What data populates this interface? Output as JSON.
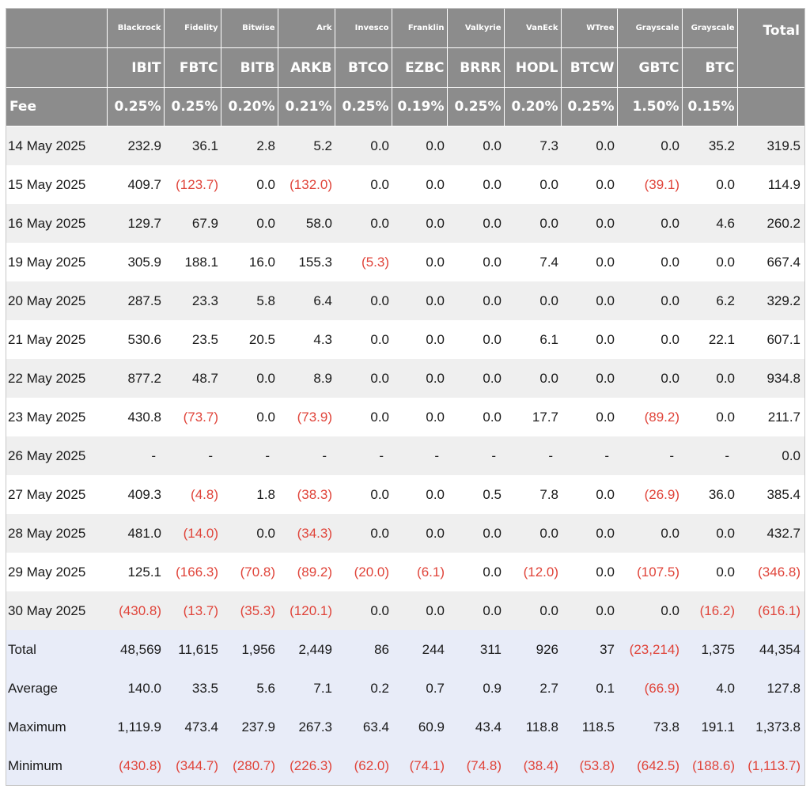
{
  "issuers": [
    "Blackrock",
    "Fidelity",
    "Bitwise",
    "Ark",
    "Invesco",
    "Franklin",
    "Valkyrie",
    "VanEck",
    "WTree",
    "Grayscale",
    "Grayscale"
  ],
  "total_label": "Total",
  "tickers": [
    "IBIT",
    "FBTC",
    "BITB",
    "ARKB",
    "BTCO",
    "EZBC",
    "BRRR",
    "HODL",
    "BTCW",
    "GBTC",
    "BTC"
  ],
  "fee_label": "Fee",
  "fees": [
    "0.25%",
    "0.25%",
    "0.20%",
    "0.21%",
    "0.25%",
    "0.19%",
    "0.25%",
    "0.20%",
    "0.25%",
    "1.50%",
    "0.15%"
  ],
  "rows": [
    {
      "label": "14 May 2025",
      "values": [
        "232.9",
        "36.1",
        "2.8",
        "5.2",
        "0.0",
        "0.0",
        "0.0",
        "7.3",
        "0.0",
        "0.0",
        "35.2",
        "319.5"
      ]
    },
    {
      "label": "15 May 2025",
      "values": [
        "409.7",
        "(123.7)",
        "0.0",
        "(132.0)",
        "0.0",
        "0.0",
        "0.0",
        "0.0",
        "0.0",
        "(39.1)",
        "0.0",
        "114.9"
      ]
    },
    {
      "label": "16 May 2025",
      "values": [
        "129.7",
        "67.9",
        "0.0",
        "58.0",
        "0.0",
        "0.0",
        "0.0",
        "0.0",
        "0.0",
        "0.0",
        "4.6",
        "260.2"
      ]
    },
    {
      "label": "19 May 2025",
      "values": [
        "305.9",
        "188.1",
        "16.0",
        "155.3",
        "(5.3)",
        "0.0",
        "0.0",
        "7.4",
        "0.0",
        "0.0",
        "0.0",
        "667.4"
      ]
    },
    {
      "label": "20 May 2025",
      "values": [
        "287.5",
        "23.3",
        "5.8",
        "6.4",
        "0.0",
        "0.0",
        "0.0",
        "0.0",
        "0.0",
        "0.0",
        "6.2",
        "329.2"
      ]
    },
    {
      "label": "21 May 2025",
      "values": [
        "530.6",
        "23.5",
        "20.5",
        "4.3",
        "0.0",
        "0.0",
        "0.0",
        "6.1",
        "0.0",
        "0.0",
        "22.1",
        "607.1"
      ]
    },
    {
      "label": "22 May 2025",
      "values": [
        "877.2",
        "48.7",
        "0.0",
        "8.9",
        "0.0",
        "0.0",
        "0.0",
        "0.0",
        "0.0",
        "0.0",
        "0.0",
        "934.8"
      ]
    },
    {
      "label": "23 May 2025",
      "values": [
        "430.8",
        "(73.7)",
        "0.0",
        "(73.9)",
        "0.0",
        "0.0",
        "0.0",
        "17.7",
        "0.0",
        "(89.2)",
        "0.0",
        "211.7"
      ]
    },
    {
      "label": "26 May 2025",
      "values": [
        "-",
        "-",
        "-",
        "-",
        "-",
        "-",
        "-",
        "-",
        "-",
        "-",
        "-",
        "0.0"
      ]
    },
    {
      "label": "27 May 2025",
      "values": [
        "409.3",
        "(4.8)",
        "1.8",
        "(38.3)",
        "0.0",
        "0.0",
        "0.5",
        "7.8",
        "0.0",
        "(26.9)",
        "36.0",
        "385.4"
      ]
    },
    {
      "label": "28 May 2025",
      "values": [
        "481.0",
        "(14.0)",
        "0.0",
        "(34.3)",
        "0.0",
        "0.0",
        "0.0",
        "0.0",
        "0.0",
        "0.0",
        "0.0",
        "432.7"
      ]
    },
    {
      "label": "29 May 2025",
      "values": [
        "125.1",
        "(166.3)",
        "(70.8)",
        "(89.2)",
        "(20.0)",
        "(6.1)",
        "0.0",
        "(12.0)",
        "0.0",
        "(107.5)",
        "0.0",
        "(346.8)"
      ]
    },
    {
      "label": "30 May 2025",
      "values": [
        "(430.8)",
        "(13.7)",
        "(35.3)",
        "(120.1)",
        "0.0",
        "0.0",
        "0.0",
        "0.0",
        "0.0",
        "0.0",
        "(16.2)",
        "(616.1)"
      ]
    }
  ],
  "summary": [
    {
      "label": "Total",
      "values": [
        "48,569",
        "11,615",
        "1,956",
        "2,449",
        "86",
        "244",
        "311",
        "926",
        "37",
        "(23,214)",
        "1,375",
        "44,354"
      ]
    },
    {
      "label": "Average",
      "values": [
        "140.0",
        "33.5",
        "5.6",
        "7.1",
        "0.2",
        "0.7",
        "0.9",
        "2.7",
        "0.1",
        "(66.9)",
        "4.0",
        "127.8"
      ]
    },
    {
      "label": "Maximum",
      "values": [
        "1,119.9",
        "473.4",
        "237.9",
        "267.3",
        "63.4",
        "60.9",
        "43.4",
        "118.8",
        "118.5",
        "73.8",
        "191.1",
        "1,373.8"
      ]
    },
    {
      "label": "Minimum",
      "values": [
        "(430.8)",
        "(344.7)",
        "(280.7)",
        "(226.3)",
        "(62.0)",
        "(74.1)",
        "(74.8)",
        "(38.4)",
        "(53.8)",
        "(642.5)",
        "(188.6)",
        "(1,113.7)"
      ]
    }
  ],
  "colors": {
    "header_bg": "#8c8c8c",
    "header_text": "#ffffff",
    "row_shade": "#efefef",
    "summary_bg": "#e8ecf8",
    "negative": "#e0443a"
  }
}
